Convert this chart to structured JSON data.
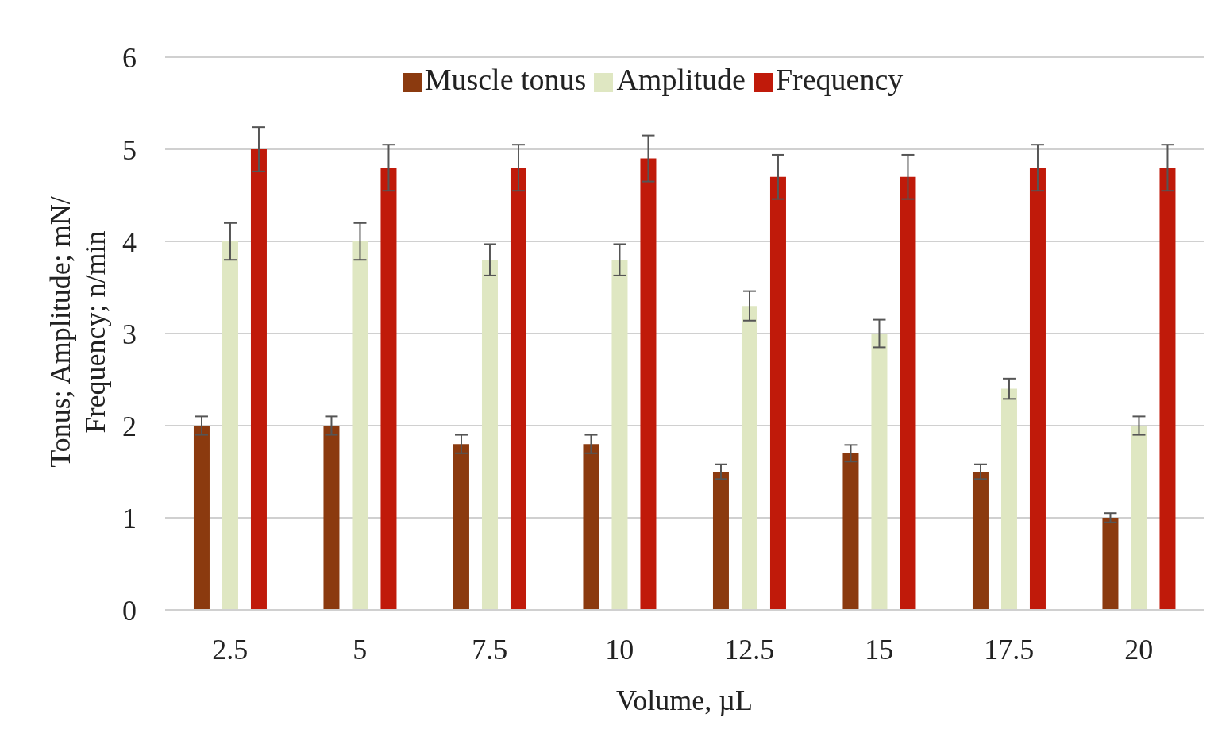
{
  "chart_data": {
    "type": "bar",
    "xlabel": "Volume, µL",
    "ylabel": "Tonus; Amplitude; mN/ Frequency; n/min",
    "categories": [
      "2.5",
      "5",
      "7.5",
      "10",
      "12.5",
      "15",
      "17.5",
      "20"
    ],
    "series": [
      {
        "name": "Muscle tonus",
        "color": "#8b3a0f",
        "values": [
          2.0,
          2.0,
          1.8,
          1.8,
          1.5,
          1.7,
          1.5,
          1.0
        ],
        "errors": [
          0.1,
          0.1,
          0.1,
          0.1,
          0.08,
          0.09,
          0.08,
          0.05
        ]
      },
      {
        "name": "Amplitude",
        "color": "#dfe7c2",
        "values": [
          4.0,
          4.0,
          3.8,
          3.8,
          3.3,
          3.0,
          2.4,
          2.0
        ],
        "errors": [
          0.2,
          0.2,
          0.17,
          0.17,
          0.16,
          0.15,
          0.11,
          0.1
        ]
      },
      {
        "name": "Frequency",
        "color": "#c01a0a",
        "values": [
          5.0,
          4.8,
          4.8,
          4.9,
          4.7,
          4.7,
          4.8,
          4.8
        ],
        "errors": [
          0.24,
          0.25,
          0.25,
          0.25,
          0.24,
          0.24,
          0.25,
          0.25
        ]
      }
    ],
    "ylim": [
      0,
      6
    ],
    "yticks": [
      0,
      1,
      2,
      3,
      4,
      5,
      6
    ],
    "grid": "y",
    "legend": "top"
  }
}
